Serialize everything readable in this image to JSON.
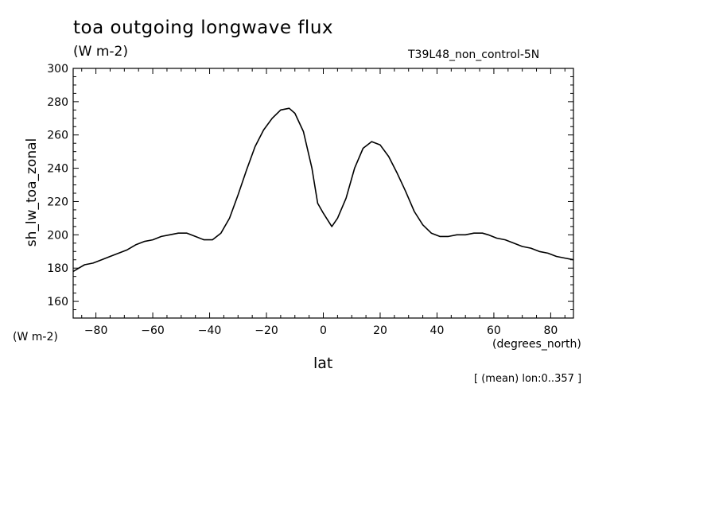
{
  "chart_data": {
    "type": "line",
    "title": "toa outgoing longwave flux",
    "subtitle": "(W m-2)",
    "run_label": "T39L48_non_control-5N",
    "ylabel": "sh_lw_toa_zonal",
    "yunits": "(W m-2)",
    "xlabel": "lat",
    "xunits": "(degrees_north)",
    "footnote": "[ (mean) lon:0..357 ]",
    "xlim": [
      -88,
      88
    ],
    "ylim": [
      150,
      300
    ],
    "xticks": [
      -80,
      -60,
      -40,
      -20,
      0,
      20,
      40,
      60,
      80
    ],
    "yticks": [
      160,
      180,
      200,
      220,
      240,
      260,
      280,
      300
    ],
    "grid": false,
    "series": [
      {
        "x": [
          -88,
          -86,
          -84,
          -81,
          -78,
          -75,
          -72,
          -69,
          -66,
          -63,
          -60,
          -57,
          -54,
          -51,
          -48,
          -45,
          -42,
          -39,
          -36,
          -33,
          -30,
          -27,
          -24,
          -21,
          -18,
          -15,
          -12,
          -10,
          -7,
          -4,
          -2,
          0,
          3,
          5,
          8,
          11,
          14,
          17,
          20,
          23,
          26,
          29,
          32,
          35,
          38,
          41,
          44,
          47,
          50,
          53,
          56,
          58,
          61,
          64,
          67,
          70,
          73,
          76,
          79,
          82,
          85,
          88
        ],
        "y": [
          178,
          180,
          182,
          183,
          185,
          187,
          189,
          191,
          194,
          196,
          197,
          199,
          200,
          201,
          201,
          199,
          197,
          197,
          201,
          210,
          224,
          239,
          253,
          263,
          270,
          275,
          276,
          273,
          262,
          240,
          219,
          213,
          205,
          210,
          222,
          240,
          252,
          256,
          254,
          247,
          237,
          226,
          214,
          206,
          201,
          199,
          199,
          200,
          200,
          201,
          201,
          200,
          198,
          197,
          195,
          193,
          192,
          190,
          189,
          187,
          186,
          185
        ]
      }
    ]
  }
}
